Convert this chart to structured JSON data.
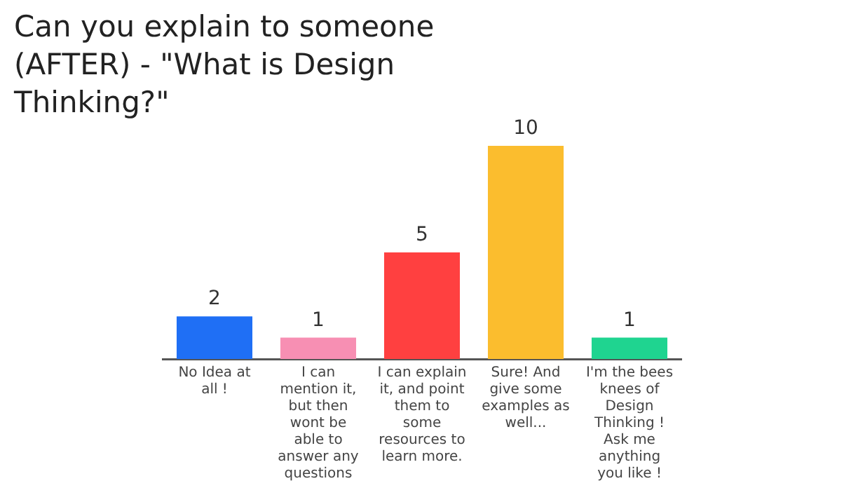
{
  "chart_data": {
    "type": "bar",
    "title": "Can you explain to someone (AFTER) - \"What is Design Thinking?\"",
    "categories": [
      "No Idea at all !",
      "I can mention it, but then wont be able to answer any questions",
      "I can explain it, and point them to some resources to learn more.",
      "Sure! And give some examples as well...",
      "I'm the bees knees of Design Thinking ! Ask me anything you like !"
    ],
    "values": [
      2,
      1,
      5,
      10,
      1
    ],
    "colors": [
      "#1f6ff5",
      "#f78fb3",
      "#ff4040",
      "#fbbd2e",
      "#1fd490"
    ],
    "data_labels": true,
    "grid": false,
    "legend": false
  }
}
